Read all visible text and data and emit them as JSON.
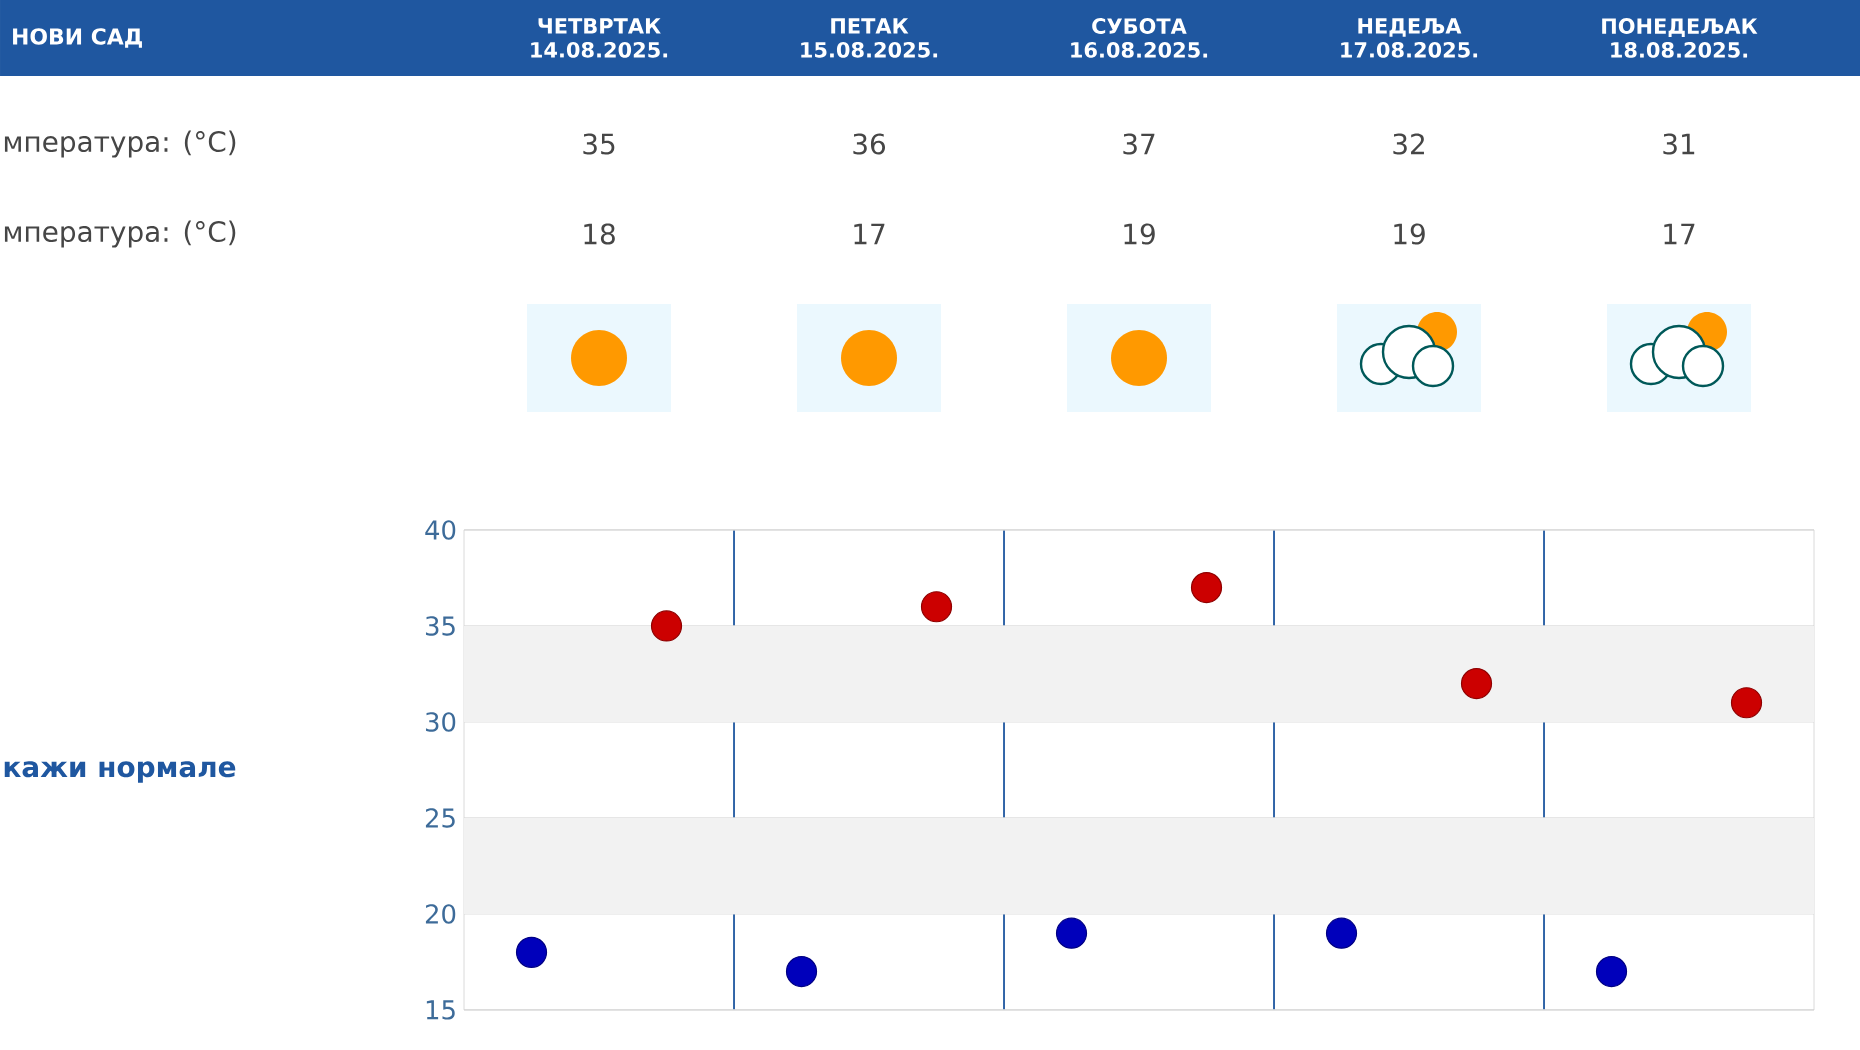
{
  "chart_data": [
    {
      "type": "other",
      "title": "НОВИ САД",
      "categories": [
        "ЧЕТВРТАК 14.08.2025.",
        "ПЕТАК 15.08.2025.",
        "СУБОТА 16.08.2025.",
        "НЕДЕЉА 17.08.2025.",
        "ПОНЕДЕЉАК 18.08.2025."
      ],
      "series": [
        {
          "name": "мпература: (°C)",
          "values": [
            35,
            36,
            37,
            32,
            31
          ]
        },
        {
          "name": "мпература: (°C)",
          "values": [
            18,
            17,
            19,
            19,
            17
          ]
        }
      ],
      "data_labels": true
    },
    {
      "type": "scatter",
      "categories": [
        null,
        null,
        null,
        null,
        null
      ],
      "series": [
        {
          "color": "#cc0000",
          "values": [
            35,
            36,
            37,
            32,
            31
          ]
        },
        {
          "color": "#0000bb",
          "values": [
            18,
            17,
            19,
            19,
            17
          ]
        }
      ],
      "ylim": [
        15,
        40
      ],
      "yticks": [
        15,
        20,
        25,
        30,
        35,
        40
      ],
      "bands": [
        {
          "axis": "y",
          "from": 20,
          "to": 25,
          "color": "#f2f2f2"
        },
        {
          "axis": "y",
          "from": 30,
          "to": 35,
          "color": "#f2f2f2"
        }
      ],
      "grid": true,
      "marker": "circle",
      "tick_labels": "y",
      "annotations": [
        "кажи нормале"
      ]
    }
  ]
}
